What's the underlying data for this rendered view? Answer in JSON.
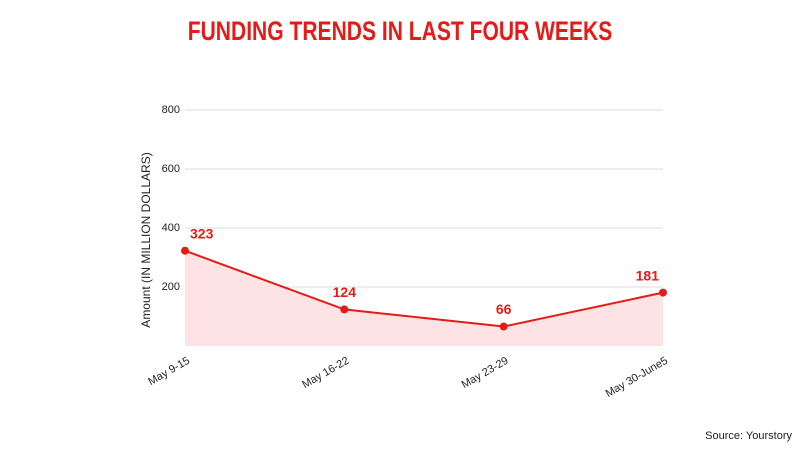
{
  "chart_data": {
    "type": "area-line",
    "title": "FUNDING TRENDS IN LAST FOUR WEEKS",
    "y_label": "Amount (IN MILLION DOLLARS)",
    "categories": [
      "May 9-15",
      "May 16-22",
      "May 23-29",
      "May 30-June5"
    ],
    "values": [
      323,
      124,
      66,
      181
    ],
    "color": "#e41b17",
    "fill": "#fde3e3",
    "ylim": [
      0,
      800
    ],
    "yticks": [
      200,
      400,
      600,
      800
    ],
    "grid": true,
    "source": "Source: Yourstory"
  }
}
